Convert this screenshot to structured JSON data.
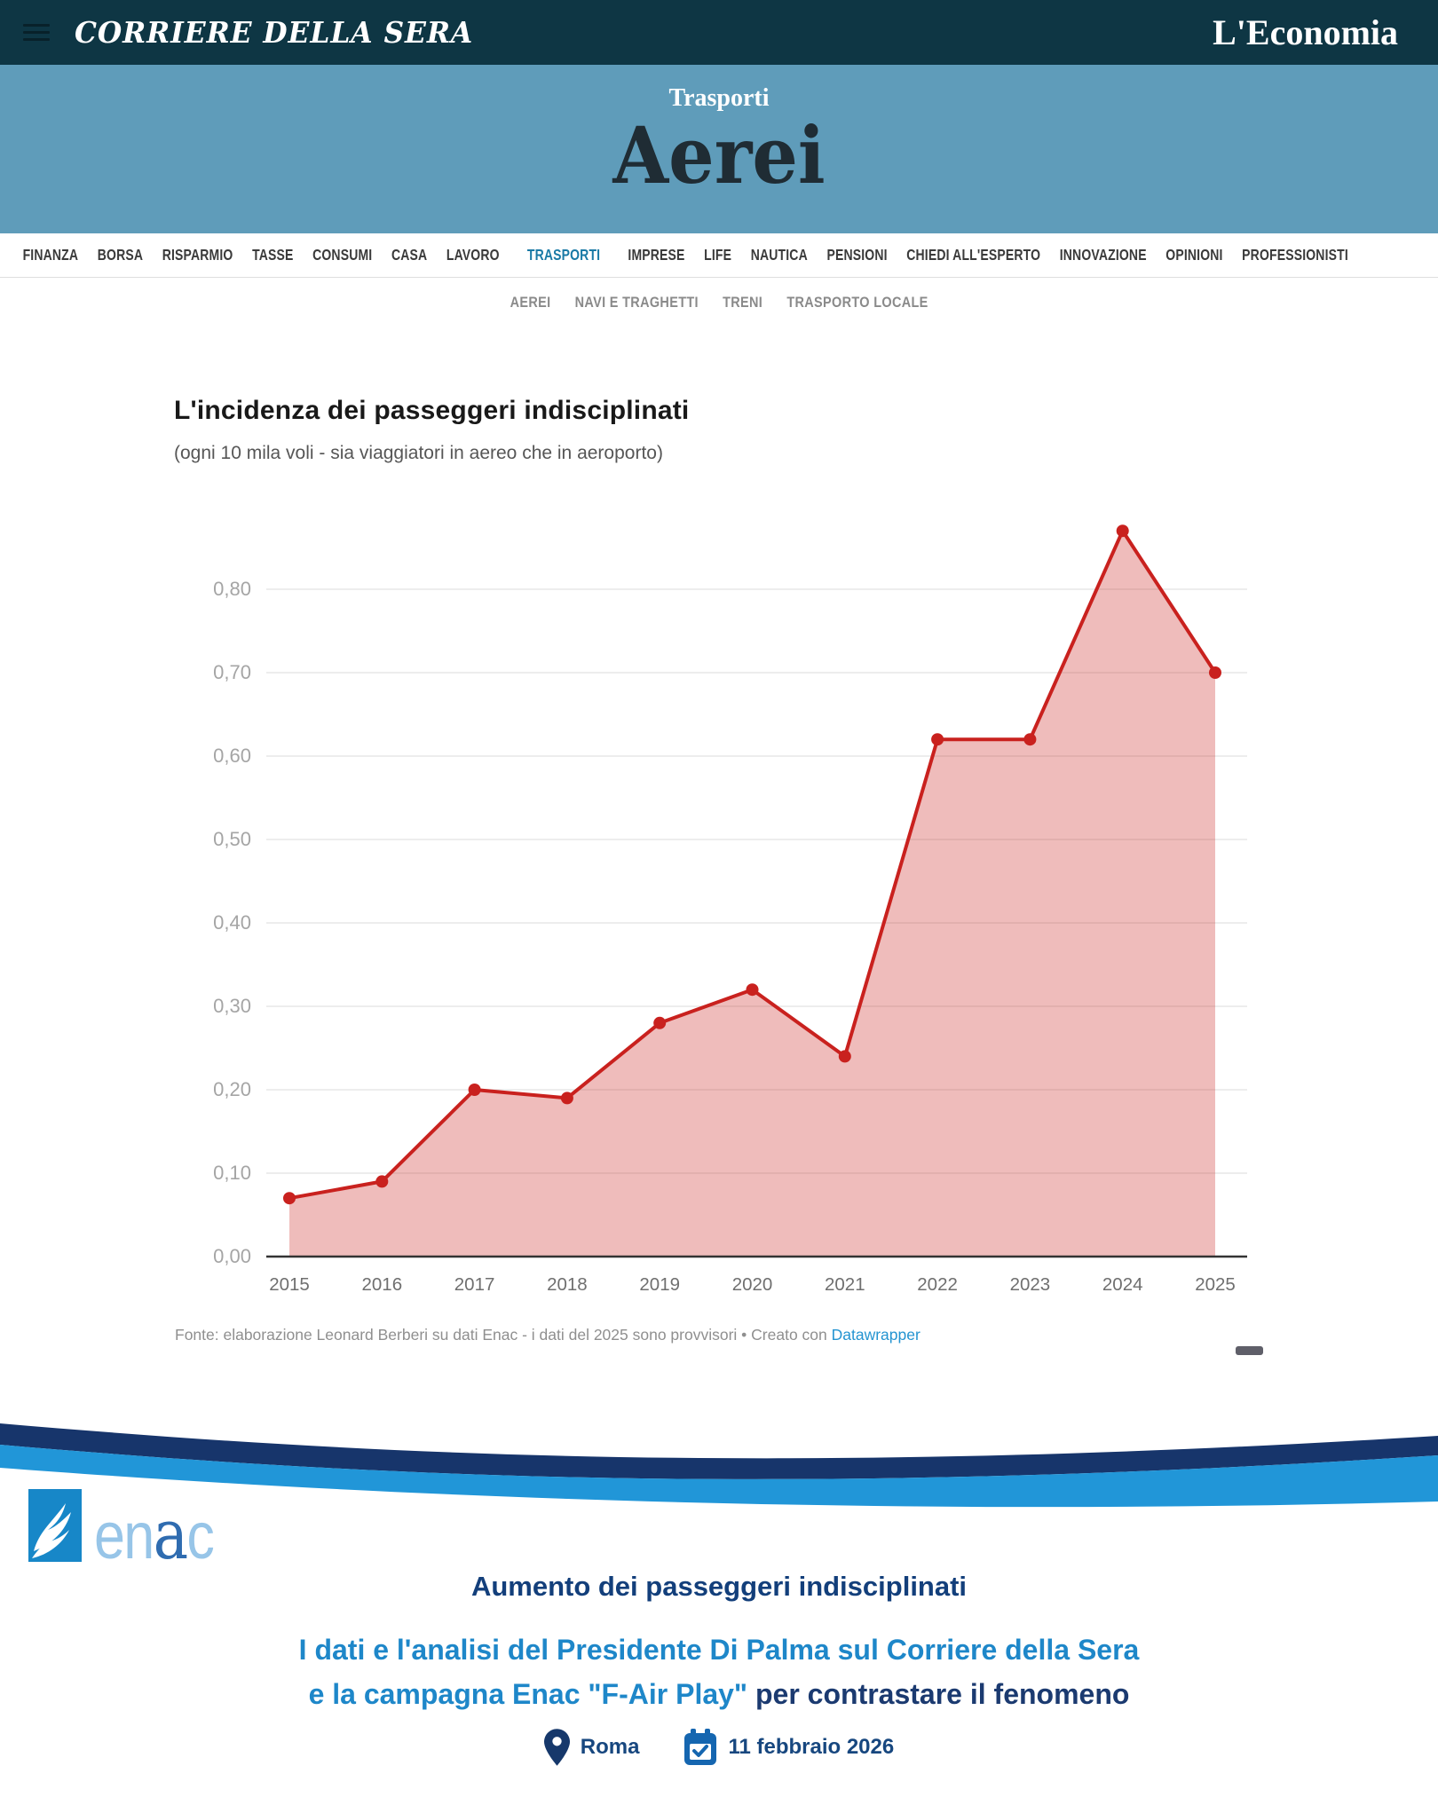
{
  "masthead": {
    "left": "CORRIERE DELLA SERA",
    "right": "L'Economia"
  },
  "banner": {
    "kicker": "Trasporti",
    "title": "Aerei"
  },
  "nav": {
    "items": [
      "FINANZA",
      "BORSA",
      "RISPARMIO",
      "TASSE",
      "CONSUMI",
      "CASA",
      "LAVORO",
      "TRASPORTI",
      "IMPRESE",
      "LIFE",
      "NAUTICA",
      "PENSIONI",
      "CHIEDI ALL'ESPERTO",
      "INNOVAZIONE",
      "OPINIONI",
      "PROFESSIONISTI"
    ],
    "active": "TRASPORTI"
  },
  "subnav": {
    "items": [
      "AEREI",
      "NAVI E TRAGHETTI",
      "TRENI",
      "TRASPORTO LOCALE"
    ]
  },
  "chart_data": {
    "type": "area",
    "title": "L'incidenza dei passeggeri indisciplinati",
    "subtitle": "(ogni 10 mila voli - sia viaggiatori in aereo che in aeroporto)",
    "categories": [
      "2015",
      "2016",
      "2017",
      "2018",
      "2019",
      "2020",
      "2021",
      "2022",
      "2023",
      "2024",
      "2025"
    ],
    "values": [
      0.07,
      0.09,
      0.2,
      0.19,
      0.28,
      0.32,
      0.24,
      0.62,
      0.62,
      0.87,
      0.7
    ],
    "ylim": [
      0,
      0.9
    ],
    "yticks": [
      {
        "v": 0.0,
        "label": "0,00"
      },
      {
        "v": 0.1,
        "label": "0,10"
      },
      {
        "v": 0.2,
        "label": "0,20"
      },
      {
        "v": 0.3,
        "label": "0,30"
      },
      {
        "v": 0.4,
        "label": "0,40"
      },
      {
        "v": 0.5,
        "label": "0,50"
      },
      {
        "v": 0.6,
        "label": "0,60"
      },
      {
        "v": 0.7,
        "label": "0,70"
      },
      {
        "v": 0.8,
        "label": "0,80"
      }
    ],
    "grid": true,
    "legend": "none",
    "line_color": "#c9211e",
    "fill_color": "rgba(201,33,30,0.3)",
    "axis_color": "#333333",
    "grid_color": "#e2e2e2",
    "ytick_color": "#a5a5a5",
    "xtick_color": "#6f6f6f",
    "source_prefix": "Fonte: elaborazione Leonard Berberi su dati Enac - i dati del 2025 sono provvisori • Creato con ",
    "source_link_label": "Datawrapper"
  },
  "enac": {
    "logo": {
      "part1": "en",
      "part2": "a",
      "part3": "c"
    },
    "title": "Aumento dei passeggeri indisciplinati",
    "line1": "I dati e l'analisi del Presidente Di Palma sul Corriere della Sera",
    "line2_highlight": "e la campagna Enac \"F-Air Play\"",
    "line2_rest": " per contrastare il fenomeno",
    "location": "Roma",
    "date": "11 febbraio 2026"
  },
  "icons": {
    "menu": "hamburger-menu",
    "location": "map-pin",
    "date": "calendar-check"
  },
  "colors": {
    "masthead_bg": "#0e3644",
    "banner_bg": "#5f9cba",
    "nav_active": "#1a7aa6",
    "chart_red": "#c9211e",
    "link_blue": "#2494d1",
    "enac_square_blue": "#1787c8",
    "enac_light_blue": "#1e87c9",
    "enac_navy": "#1b3a70",
    "wave_navy": "#17356b",
    "wave_blue": "#2196d8"
  }
}
